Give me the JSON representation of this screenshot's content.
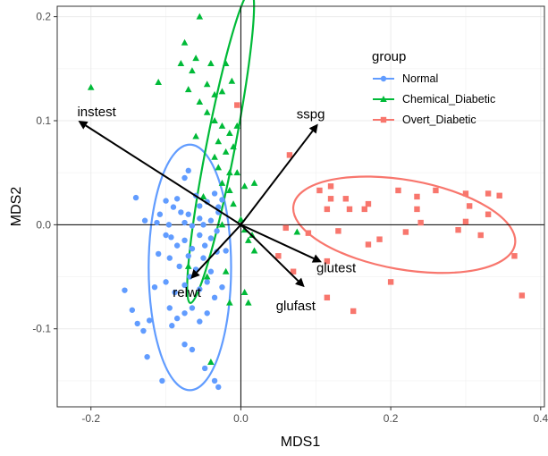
{
  "chart_data": {
    "type": "scatter",
    "xlabel": "MDS1",
    "ylabel": "MDS2",
    "xlim": [
      -0.245,
      0.405
    ],
    "ylim": [
      -0.175,
      0.21
    ],
    "xticks": [
      -0.2,
      0.0,
      0.2,
      0.4
    ],
    "xtick_labels": [
      "-0.2",
      "0.0",
      "0.2",
      "0.4"
    ],
    "yticks": [
      -0.1,
      0.0,
      0.1,
      0.2
    ],
    "ytick_labels": [
      "-0.1",
      "0.0",
      "0.1",
      "0.2"
    ],
    "grid": true,
    "reference_lines": {
      "x": 0,
      "y": 0
    },
    "legend": {
      "title": "group",
      "position": "top-right"
    },
    "series": [
      {
        "name": "Normal",
        "color": "#619CFF",
        "marker": "circle",
        "points": [
          [
            -0.075,
            0.045
          ],
          [
            -0.07,
            0.052
          ],
          [
            -0.06,
            0.028
          ],
          [
            -0.055,
            0.018
          ],
          [
            -0.045,
            0.022
          ],
          [
            -0.035,
            0.03
          ],
          [
            -0.03,
            0.017
          ],
          [
            -0.025,
            0.024
          ],
          [
            -0.14,
            0.026
          ],
          [
            -0.128,
            0.004
          ],
          [
            -0.112,
            0.002
          ],
          [
            -0.096,
            0.0
          ],
          [
            -0.1,
            0.023
          ],
          [
            -0.09,
            0.017
          ],
          [
            -0.085,
            0.025
          ],
          [
            -0.08,
            0.012
          ],
          [
            -0.075,
            0.002
          ],
          [
            -0.07,
            0.01
          ],
          [
            -0.065,
            -0.001
          ],
          [
            -0.055,
            0.006
          ],
          [
            -0.05,
            0.0
          ],
          [
            -0.04,
            0.004
          ],
          [
            -0.03,
            0.012
          ],
          [
            -0.1,
            -0.01
          ],
          [
            -0.093,
            -0.012
          ],
          [
            -0.085,
            -0.02
          ],
          [
            -0.075,
            -0.015
          ],
          [
            -0.065,
            -0.023
          ],
          [
            -0.055,
            -0.01
          ],
          [
            -0.048,
            -0.02
          ],
          [
            -0.04,
            -0.013
          ],
          [
            -0.032,
            -0.006
          ],
          [
            -0.11,
            -0.028
          ],
          [
            -0.095,
            -0.032
          ],
          [
            -0.082,
            -0.04
          ],
          [
            -0.07,
            -0.03
          ],
          [
            -0.06,
            -0.043
          ],
          [
            -0.05,
            -0.032
          ],
          [
            -0.04,
            -0.045
          ],
          [
            -0.032,
            -0.026
          ],
          [
            -0.115,
            -0.06
          ],
          [
            -0.1,
            -0.055
          ],
          [
            -0.088,
            -0.065
          ],
          [
            -0.075,
            -0.058
          ],
          [
            -0.068,
            -0.05
          ],
          [
            -0.055,
            -0.062
          ],
          [
            -0.045,
            -0.055
          ],
          [
            -0.035,
            -0.07
          ],
          [
            -0.095,
            -0.08
          ],
          [
            -0.085,
            -0.09
          ],
          [
            -0.075,
            -0.085
          ],
          [
            -0.065,
            -0.08
          ],
          [
            -0.055,
            -0.093
          ],
          [
            -0.045,
            -0.085
          ],
          [
            -0.145,
            -0.082
          ],
          [
            -0.138,
            -0.095
          ],
          [
            -0.13,
            -0.102
          ],
          [
            -0.122,
            -0.092
          ],
          [
            -0.092,
            -0.097
          ],
          [
            -0.075,
            -0.115
          ],
          [
            -0.065,
            -0.12
          ],
          [
            -0.125,
            -0.127
          ],
          [
            -0.035,
            -0.15
          ],
          [
            -0.03,
            -0.156
          ],
          [
            -0.048,
            -0.138
          ],
          [
            -0.105,
            -0.15
          ],
          [
            -0.155,
            -0.063
          ],
          [
            -0.02,
            -0.025
          ],
          [
            -0.025,
            -0.06
          ],
          [
            -0.108,
            0.01
          ]
        ]
      },
      {
        "name": "Chemical_Diabetic",
        "color": "#00BA38",
        "marker": "triangle",
        "points": [
          [
            -0.2,
            0.132
          ],
          [
            -0.11,
            0.137
          ],
          [
            -0.08,
            0.155
          ],
          [
            -0.04,
            0.155
          ],
          [
            -0.06,
            0.16
          ],
          [
            -0.055,
            0.2
          ],
          [
            -0.075,
            0.175
          ],
          [
            -0.065,
            0.148
          ],
          [
            -0.045,
            0.135
          ],
          [
            -0.035,
            0.125
          ],
          [
            -0.025,
            0.128
          ],
          [
            -0.055,
            0.118
          ],
          [
            -0.045,
            0.108
          ],
          [
            -0.035,
            0.1
          ],
          [
            -0.025,
            0.095
          ],
          [
            -0.015,
            0.088
          ],
          [
            -0.005,
            0.095
          ],
          [
            -0.06,
            0.085
          ],
          [
            -0.03,
            0.08
          ],
          [
            -0.02,
            0.07
          ],
          [
            -0.01,
            0.075
          ],
          [
            -0.035,
            0.065
          ],
          [
            -0.015,
            0.05
          ],
          [
            -0.005,
            0.05
          ],
          [
            -0.025,
            0.04
          ],
          [
            -0.015,
            0.033
          ],
          [
            0.005,
            0.037
          ],
          [
            -0.01,
            0.02
          ],
          [
            0.0,
            0.005
          ],
          [
            0.005,
            -0.005
          ],
          [
            0.01,
            -0.015
          ],
          [
            0.018,
            -0.025
          ],
          [
            0.018,
            0.04
          ],
          [
            -0.025,
            0.0
          ],
          [
            0.015,
            -0.01
          ],
          [
            -0.045,
            -0.05
          ],
          [
            -0.02,
            -0.045
          ],
          [
            -0.015,
            -0.075
          ],
          [
            0.01,
            -0.075
          ],
          [
            0.005,
            -0.065
          ],
          [
            -0.04,
            -0.132
          ],
          [
            -0.07,
            -0.04
          ],
          [
            0.075,
            -0.007
          ],
          [
            -0.05,
            0.027
          ],
          [
            -0.03,
            0.055
          ],
          [
            -0.012,
            0.138
          ],
          [
            -0.02,
            0.155
          ],
          [
            -0.07,
            0.13
          ]
        ]
      },
      {
        "name": "Overt_Diabetic",
        "color": "#F8766D",
        "marker": "square",
        "points": [
          [
            -0.005,
            0.115
          ],
          [
            0.065,
            0.067
          ],
          [
            0.105,
            0.033
          ],
          [
            0.12,
            0.037
          ],
          [
            0.14,
            0.025
          ],
          [
            0.115,
            0.015
          ],
          [
            0.12,
            0.025
          ],
          [
            0.145,
            0.015
          ],
          [
            0.165,
            0.015
          ],
          [
            0.17,
            0.02
          ],
          [
            0.21,
            0.033
          ],
          [
            0.235,
            0.027
          ],
          [
            0.235,
            0.015
          ],
          [
            0.26,
            0.033
          ],
          [
            0.3,
            0.03
          ],
          [
            0.33,
            0.03
          ],
          [
            0.345,
            0.028
          ],
          [
            0.305,
            0.018
          ],
          [
            0.33,
            0.01
          ],
          [
            0.3,
            0.003
          ],
          [
            0.24,
            0.002
          ],
          [
            0.13,
            -0.006
          ],
          [
            0.09,
            -0.008
          ],
          [
            0.06,
            -0.003
          ],
          [
            0.185,
            -0.014
          ],
          [
            0.22,
            -0.007
          ],
          [
            0.29,
            -0.005
          ],
          [
            0.32,
            -0.01
          ],
          [
            0.365,
            -0.03
          ],
          [
            0.17,
            -0.019
          ],
          [
            0.115,
            -0.035
          ],
          [
            0.2,
            -0.055
          ],
          [
            0.15,
            -0.083
          ],
          [
            0.115,
            -0.07
          ],
          [
            0.375,
            -0.068
          ],
          [
            0.07,
            -0.045
          ],
          [
            0.05,
            -0.03
          ]
        ]
      }
    ],
    "ellipses": [
      {
        "group": "Normal",
        "center": [
          -0.068,
          -0.041
        ],
        "rx": 0.055,
        "ry": 0.118,
        "rotation_deg": 0
      },
      {
        "group": "Chemical_Diabetic",
        "center": [
          -0.027,
          0.075
        ],
        "rx": 0.019,
        "ry": 0.153,
        "rotation_deg": 11
      },
      {
        "group": "Overt_Diabetic",
        "center": [
          0.218,
          0.0
        ],
        "rx": 0.15,
        "ry": 0.043,
        "rotation_deg": 10
      }
    ],
    "vectors": [
      {
        "label": "instest",
        "x": -0.217,
        "y": 0.1
      },
      {
        "label": "sspg",
        "x": 0.103,
        "y": 0.097
      },
      {
        "label": "relwt",
        "x": -0.067,
        "y": -0.052
      },
      {
        "label": "glutest",
        "x": 0.108,
        "y": -0.036
      },
      {
        "label": "glufast",
        "x": 0.085,
        "y": -0.06
      }
    ]
  }
}
